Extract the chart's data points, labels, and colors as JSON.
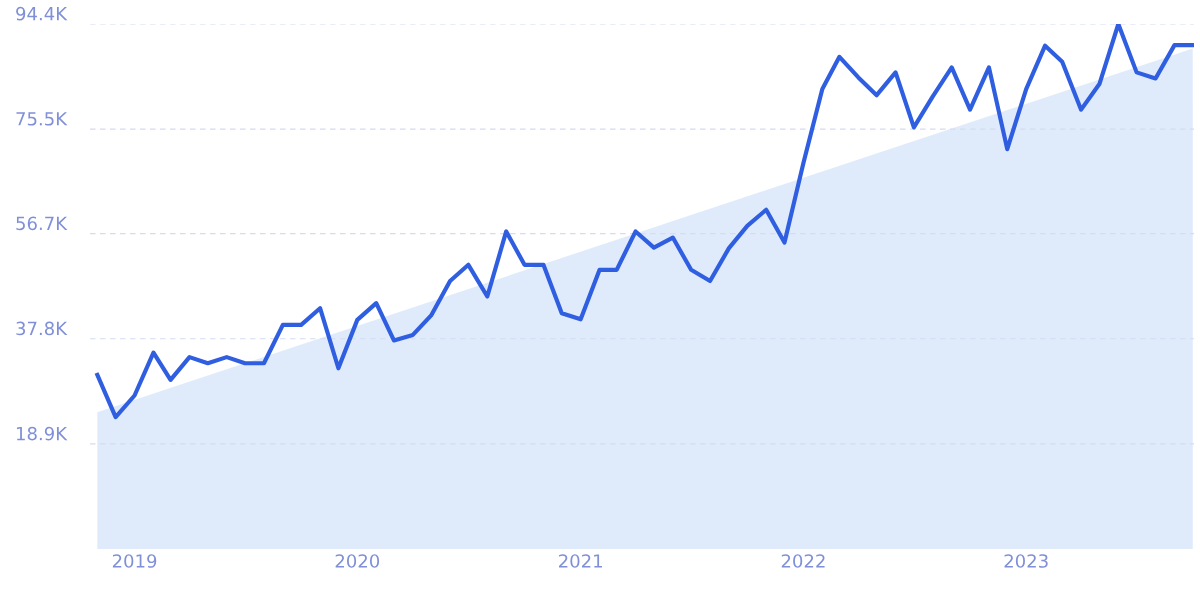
{
  "chart_data": {
    "type": "line",
    "x": [
      "2018-11",
      "2018-12",
      "2019-01",
      "2019-02",
      "2019-03",
      "2019-04",
      "2019-05",
      "2019-06",
      "2019-07",
      "2019-08",
      "2019-09",
      "2019-10",
      "2019-11",
      "2019-12",
      "2020-01",
      "2020-02",
      "2020-03",
      "2020-04",
      "2020-05",
      "2020-06",
      "2020-07",
      "2020-08",
      "2020-09",
      "2020-10",
      "2020-11",
      "2020-12",
      "2021-01",
      "2021-02",
      "2021-03",
      "2021-04",
      "2021-05",
      "2021-06",
      "2021-07",
      "2021-08",
      "2021-09",
      "2021-10",
      "2021-11",
      "2021-12",
      "2022-01",
      "2022-02",
      "2022-03",
      "2022-04",
      "2022-05",
      "2022-06",
      "2022-07",
      "2022-08",
      "2022-09",
      "2022-10",
      "2022-11",
      "2022-12",
      "2023-01",
      "2023-02",
      "2023-03",
      "2023-04",
      "2023-05",
      "2023-06",
      "2023-07",
      "2023-08",
      "2023-09",
      "2023-10"
    ],
    "series": [
      {
        "type": "area",
        "color": "#dce9fb",
        "x": [
          "2018-11",
          "2023-10"
        ],
        "values": [
          24.6,
          90.0
        ]
      },
      {
        "type": "line",
        "color": "#2f5ee0",
        "values": [
          31.3,
          23.7,
          27.6,
          35.3,
          30.4,
          34.5,
          33.4,
          34.5,
          33.4,
          33.4,
          40.3,
          40.3,
          43.3,
          32.5,
          41.2,
          44.2,
          37.5,
          38.5,
          42.0,
          48.2,
          51.1,
          45.4,
          57.1,
          51.1,
          51.1,
          42.4,
          41.3,
          50.2,
          50.2,
          57.1,
          54.2,
          56.0,
          50.2,
          48.2,
          54.1,
          58.1,
          61.0,
          55.1,
          69.4,
          82.7,
          88.5,
          84.8,
          81.6,
          85.7,
          75.8,
          81.4,
          86.6,
          79.0,
          86.6,
          71.9,
          82.7,
          90.5,
          87.6,
          79.0,
          83.6,
          94.4,
          85.7,
          84.6,
          90.6,
          90.6
        ]
      }
    ],
    "xlim": [
      "2018-10-20",
      "2023-10-03"
    ],
    "xticks": [
      "2019",
      "2020",
      "2021",
      "2022",
      "2023"
    ],
    "ylim": [
      0,
      94.4
    ],
    "yticks": [
      {
        "value": 18.9,
        "label": "18.9K"
      },
      {
        "value": 37.8,
        "label": "37.8K"
      },
      {
        "value": 56.7,
        "label": "56.7K"
      },
      {
        "value": 75.5,
        "label": "75.5K"
      },
      {
        "value": 94.4,
        "label": "94.4K"
      }
    ],
    "grid": "y",
    "line_style": "solid",
    "marker": "none"
  }
}
